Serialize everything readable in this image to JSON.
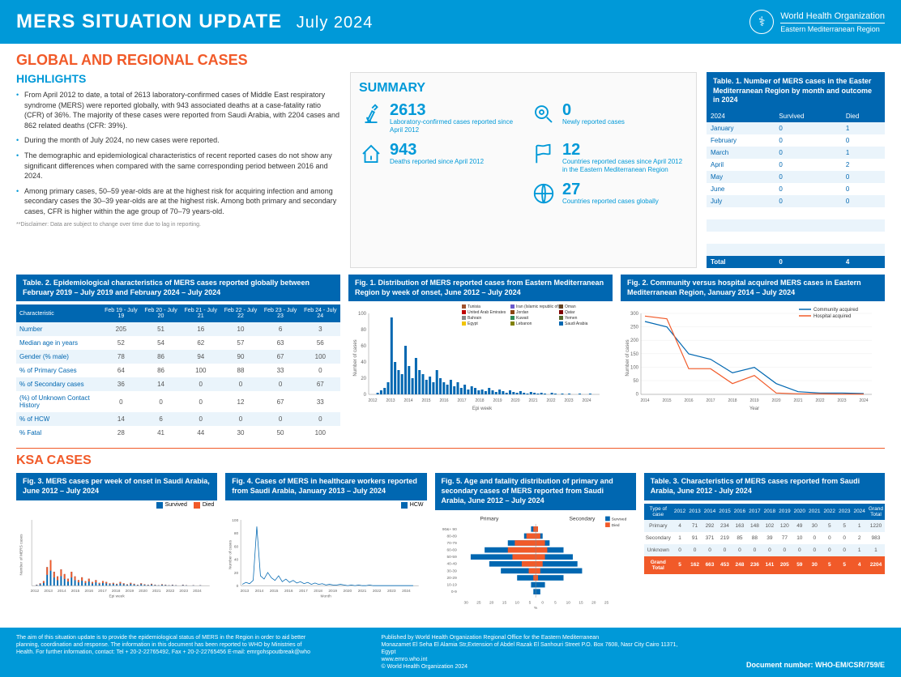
{
  "header": {
    "title": "MERS SITUATION UPDATE",
    "month": "July 2024",
    "org": "World Health Organization",
    "region": "Eastern Mediterranean Region"
  },
  "section1_title": "GLOBAL AND REGIONAL CASES",
  "highlights_title": "HIGHLIGHTS",
  "highlights": [
    "From April 2012 to date, a total of 2613 laboratory-confirmed cases of Middle East respiratory syndrome (MERS) were reported globally, with 943 associated deaths at a case-fatality ratio (CFR) of 36%. The majority of these cases were reported from Saudi Arabia, with 2204 cases and 862 related deaths (CFR: 39%).",
    "During the month of July 2024, no new cases were reported.",
    "The demographic and epidemiological characteristics of recent reported cases do not show any significant differences when compared with the same corresponding period between 2016 and 2024.",
    "Among primary cases, 50–59 year-olds are at the highest risk for acquiring infection and among secondary cases the 30–39 year-olds are at the highest risk. Among both primary and secondary cases, CFR is higher within the age group of 70–79 years-old."
  ],
  "disclaimer": "**Disclaimer: Data are subject to change over time due to lag in reporting.",
  "summary": {
    "title": "SUMMARY",
    "items": [
      {
        "num": "2613",
        "label": "Laboratory-confirmed cases reported since April 2012"
      },
      {
        "num": "0",
        "label": "Newly reported cases"
      },
      {
        "num": "943",
        "label": "Deaths reported since April 2012"
      },
      {
        "num": "12",
        "label": "Countries reported cases since April 2012 in the Eastern Mediterranean Region"
      },
      {
        "num": "",
        "label": ""
      },
      {
        "num": "27",
        "label": "Countries reported cases globally"
      }
    ]
  },
  "table1": {
    "title": "Table. 1. Number of MERS cases in the Easter Mediterranean Region by month and outcome in 2024",
    "headers": [
      "2024",
      "Survived",
      "Died"
    ],
    "rows": [
      [
        "January",
        "0",
        "1"
      ],
      [
        "February",
        "0",
        "0"
      ],
      [
        "March",
        "0",
        "1"
      ],
      [
        "April",
        "0",
        "2"
      ],
      [
        "May",
        "0",
        "0"
      ],
      [
        "June",
        "0",
        "0"
      ],
      [
        "July",
        "0",
        "0"
      ]
    ],
    "total": [
      "Total",
      "0",
      "4"
    ]
  },
  "table2": {
    "title": "Table. 2. Epidemiological characteristics of MERS cases reported globally between February 2019 – July 2019 and February 2024 – July 2024",
    "headers": [
      "Characteristic",
      "Feb 19 - July 19",
      "Feb 20 - July 20",
      "Feb 21 - July 21",
      "Feb 22 - July 22",
      "Feb 23 - July 23",
      "Feb 24 - July 24"
    ],
    "rows": [
      [
        "Number",
        "205",
        "51",
        "16",
        "10",
        "6",
        "3"
      ],
      [
        "Median age in years",
        "52",
        "54",
        "62",
        "57",
        "63",
        "56"
      ],
      [
        "Gender (% male)",
        "78",
        "86",
        "94",
        "90",
        "67",
        "100"
      ],
      [
        "% of Primary Cases",
        "64",
        "86",
        "100",
        "88",
        "33",
        "0"
      ],
      [
        "% of Secondary cases",
        "36",
        "14",
        "0",
        "0",
        "0",
        "67"
      ],
      [
        "(%) of Unknown Contact History",
        "0",
        "0",
        "0",
        "12",
        "67",
        "33"
      ],
      [
        "% of HCW",
        "14",
        "6",
        "0",
        "0",
        "0",
        "0"
      ],
      [
        "% Fatal",
        "28",
        "41",
        "44",
        "30",
        "50",
        "100"
      ]
    ]
  },
  "fig1": {
    "title": "Fig. 1. Distribution of MERS reported cases from Eastern Mediterranean Region by week of onset, June 2012 – July 2024",
    "ylabel": "Number of cases",
    "xlabel": "Epi week",
    "ymax": 100,
    "ytick": 20,
    "legend": [
      "Tunisia",
      "United Arab Emirates",
      "Bahrain",
      "Egypt",
      "Iran (Islamic republic of)",
      "Jordan",
      "Kuwait",
      "Lebanon",
      "Oman",
      "Qatar",
      "Yemen",
      "Saudi Arabia"
    ],
    "legend_colors": [
      "#a0522d",
      "#c00000",
      "#888",
      "#f2c400",
      "#6a5acd",
      "#8b4513",
      "#2e8b57",
      "#808000",
      "#654321",
      "#800000",
      "#556b2f",
      "#0067b1"
    ],
    "years": [
      "2012",
      "2013",
      "2014",
      "2015",
      "2016",
      "2017",
      "2018",
      "2019",
      "2020",
      "2021",
      "2022",
      "2023",
      "2024"
    ]
  },
  "fig2": {
    "title": "Fig. 2. Community versus hospital acquired MERS cases in Eastern Mediterranean Region, January 2014 – July 2024",
    "ylabel": "Number of cases",
    "xlabel": "Year",
    "ymax": 300,
    "ytick": 50,
    "years": [
      "2014",
      "2015",
      "2016",
      "2017",
      "2018",
      "2019",
      "2020",
      "2021",
      "2022",
      "2023",
      "2024"
    ],
    "series": [
      {
        "name": "Community acquired",
        "color": "#0067b1",
        "values": [
          270,
          250,
          150,
          130,
          80,
          100,
          40,
          10,
          5,
          5,
          3
        ]
      },
      {
        "name": "Hospital acquired",
        "color": "#f15a29",
        "values": [
          290,
          280,
          95,
          95,
          40,
          70,
          5,
          2,
          2,
          1,
          1
        ]
      }
    ]
  },
  "ksa_title": "KSA CASES",
  "fig3": {
    "title": "Fig. 3. MERS cases per week of onset in Saudi Arabia, June 2012 – July 2024",
    "ylabel": "Number of MERS cases",
    "xlabel": "Epi week",
    "legend": [
      {
        "name": "Survived",
        "color": "#0067b1"
      },
      {
        "name": "Died",
        "color": "#f15a29"
      }
    ],
    "years": [
      "2012",
      "2013",
      "2014",
      "2015",
      "2016",
      "2017",
      "2018",
      "2019",
      "2020",
      "2021",
      "2022",
      "2023",
      "2024"
    ]
  },
  "fig4": {
    "title": "Fig. 4. Cases of MERS in healthcare workers reported from Saudi Arabia, January 2013 – July 2024",
    "ylabel": "Number of cases",
    "xlabel": "Month",
    "ymax": 100,
    "ytick": 20,
    "legend": [
      {
        "name": "HCW",
        "color": "#0067b1"
      }
    ],
    "years": [
      "2013",
      "2014",
      "2015",
      "2016",
      "2017",
      "2018",
      "2019",
      "2020",
      "2021",
      "2022",
      "2023",
      "2024"
    ]
  },
  "fig5": {
    "title": "Fig. 5. Age and fatality distribution of primary and secondary cases of MERS reported from Saudi Arabia, June 2012 – July 2024",
    "age_groups": [
      "90&+ 90",
      "80-89",
      "70-79",
      "60-69",
      "50-59",
      "40-49",
      "30-39",
      "20-29",
      "10-19",
      "0-9"
    ],
    "primary_label": "Primary",
    "secondary_label": "Secondary",
    "legend": [
      {
        "name": "Survived",
        "color": "#0067b1"
      },
      {
        "name": "Died",
        "color": "#f15a29"
      }
    ],
    "xlabel": "%",
    "xticks": [
      "30",
      "25",
      "20",
      "15",
      "10",
      "5",
      "0",
      "5",
      "10",
      "15",
      "20",
      "25"
    ]
  },
  "table3": {
    "title": "Table. 3. Characteristics of MERS cases reported from Saudi Arabia, June 2012 - July 2024",
    "headers": [
      "Type of case",
      "2012",
      "2013",
      "2014",
      "2015",
      "2016",
      "2017",
      "2018",
      "2019",
      "2020",
      "2021",
      "2022",
      "2023",
      "2024",
      "Grand Total"
    ],
    "rows": [
      [
        "Primary",
        "4",
        "71",
        "292",
        "234",
        "163",
        "148",
        "102",
        "120",
        "49",
        "30",
        "5",
        "5",
        "1",
        "1220"
      ],
      [
        "Secondary",
        "1",
        "91",
        "371",
        "219",
        "85",
        "88",
        "39",
        "77",
        "10",
        "0",
        "0",
        "0",
        "2",
        "983"
      ],
      [
        "Unknown",
        "0",
        "0",
        "0",
        "0",
        "0",
        "0",
        "0",
        "0",
        "0",
        "0",
        "0",
        "0",
        "1",
        "1"
      ]
    ],
    "total": [
      "Grand Total",
      "5",
      "162",
      "663",
      "453",
      "248",
      "236",
      "141",
      "205",
      "59",
      "30",
      "5",
      "5",
      "4",
      "2204"
    ]
  },
  "footer": {
    "left": "The aim of this situation update is to provide the epidemiological status of MERS in the Region in order to aid better planning, coordination and response. The information in this document has been reported to WHO by Ministries of Health. For further information, contact: Tel + 20-2-22765492, Fax + 20-2-22765456 E-mail: emrgohspoutbreak@who",
    "mid": "Published by World Health Organization Regional Office for the Eastern Mediterranean\nMonazamet El Seha El Alamia Str,Extension of Abdel Razak El Sanhouri Street P.O. Box 7608, Nasr City Cairo 11371, Egypt\nwww.emro.who.int\n© World Health Organization 2024",
    "docnum": "Document number: WHO-EM/CSR/759/E"
  },
  "colors": {
    "blue": "#0099d8",
    "darkblue": "#0067b1",
    "orange": "#f15a29"
  }
}
